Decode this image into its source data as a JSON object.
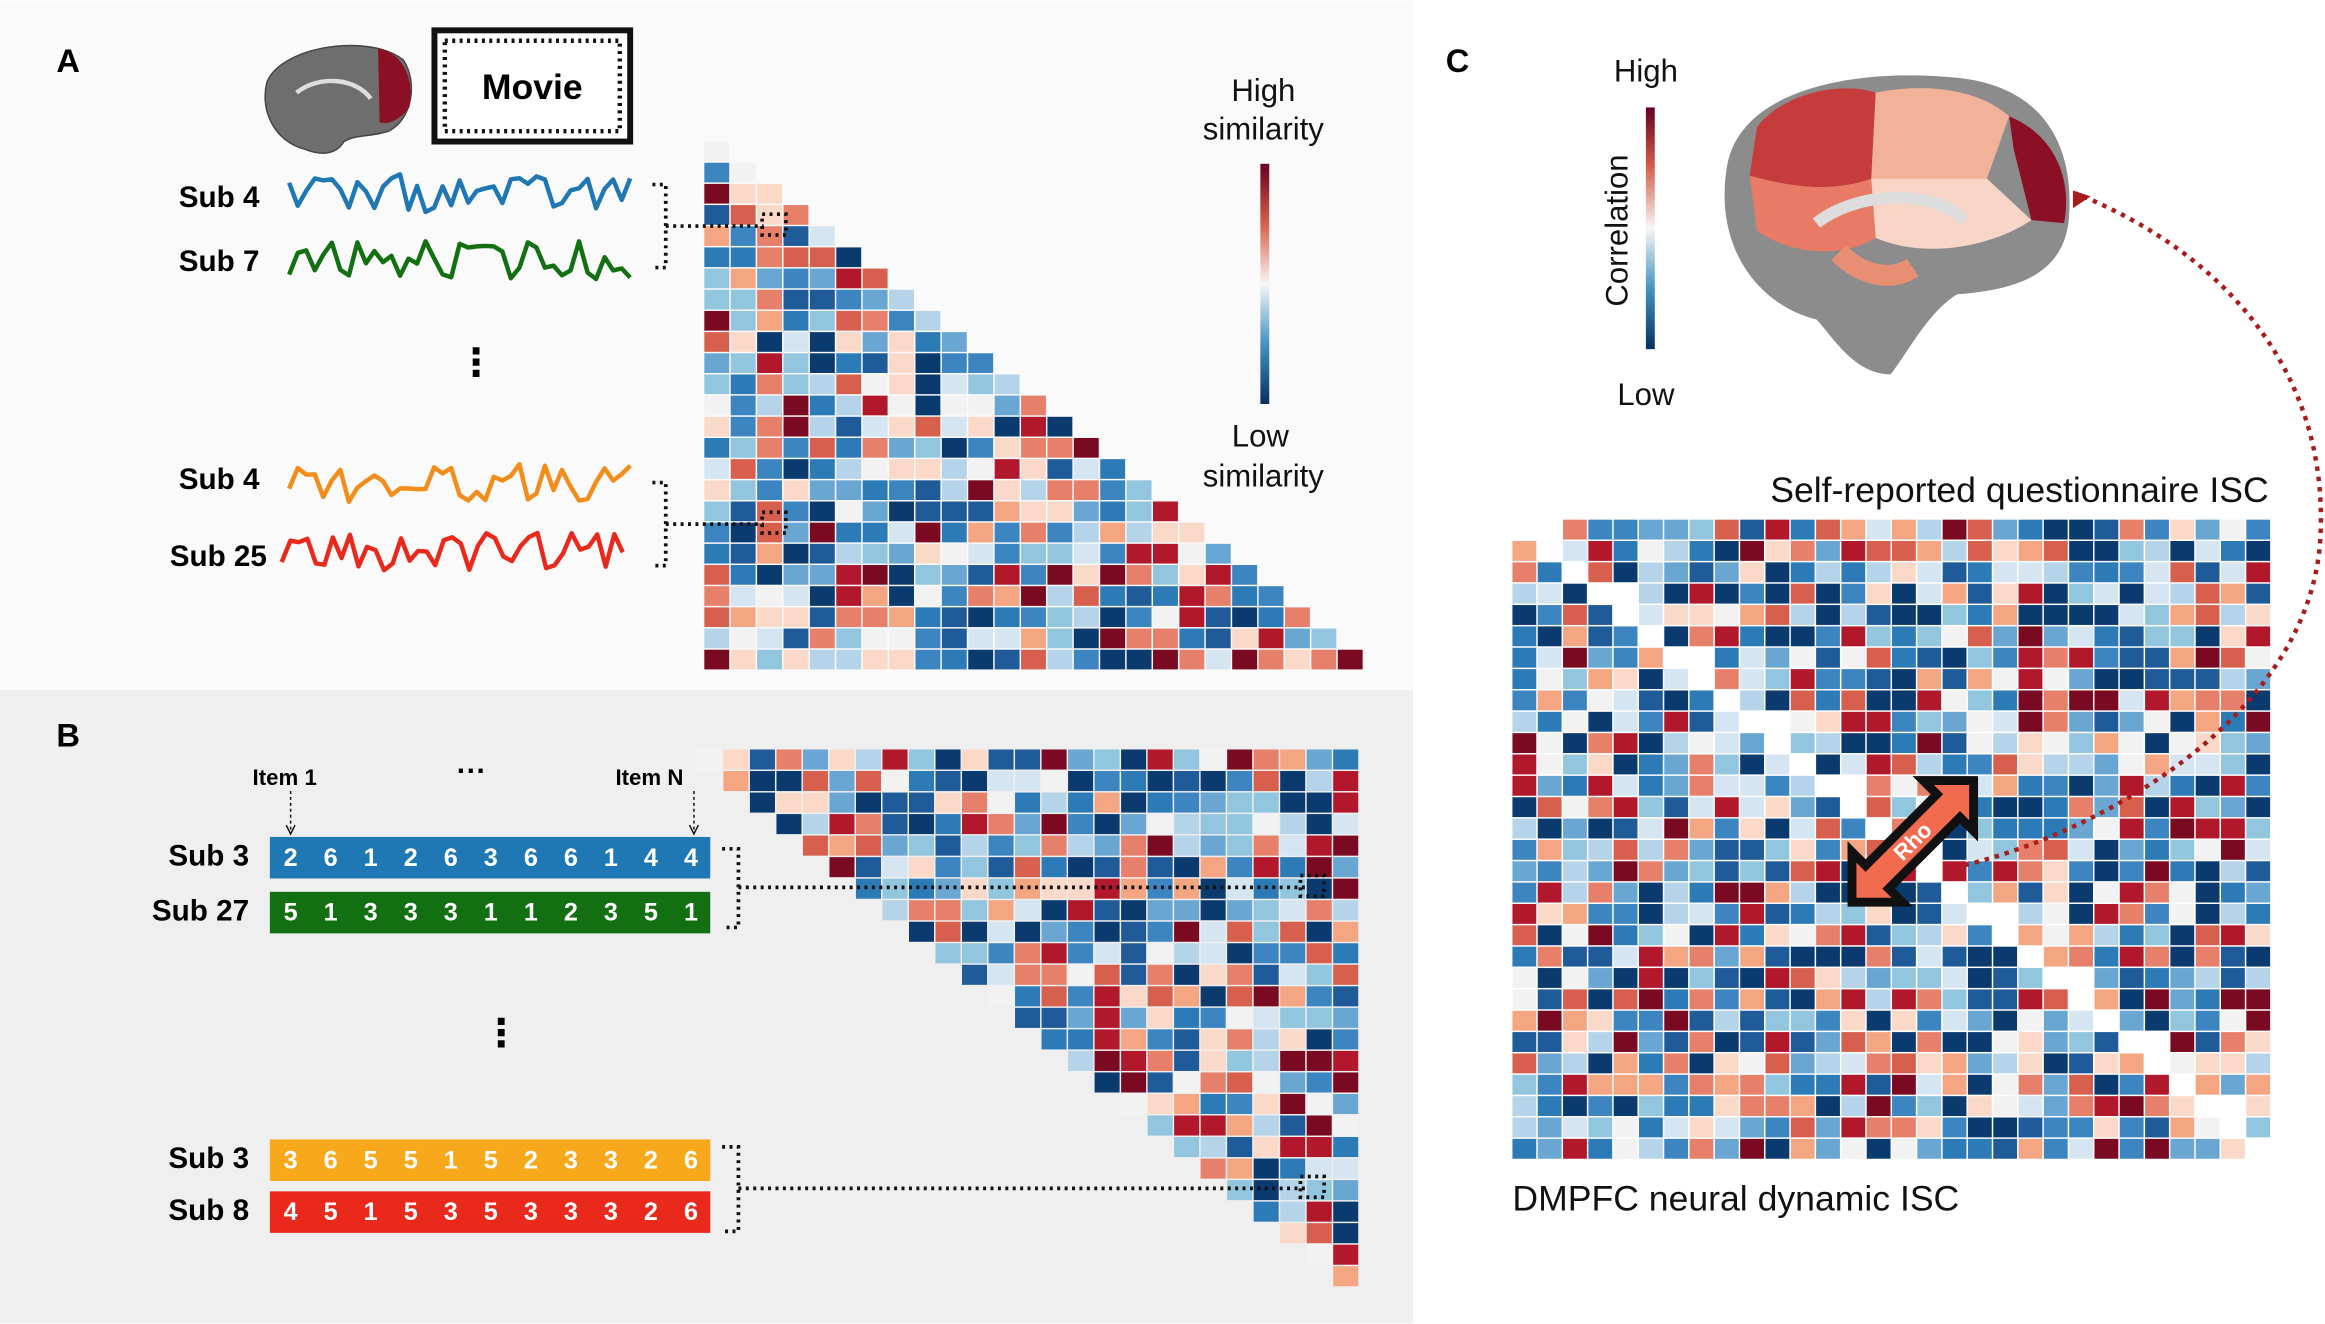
{
  "panel_a": {
    "label": "A",
    "movie": "Movie",
    "subjects": [
      "Sub 4",
      "Sub 7",
      "Sub 4",
      "Sub 25"
    ],
    "signal_colors": [
      "#1f77b4",
      "#127012",
      "#f28c1a",
      "#e8291c"
    ],
    "ellipsis": "⋮",
    "colorbar": {
      "high": [
        "High",
        "similarity"
      ],
      "low": [
        "Low",
        "similarity"
      ]
    }
  },
  "panel_b": {
    "label": "B",
    "item_first": "Item 1",
    "item_dots": "···",
    "item_last": "Item N",
    "ellipsis": "⋮",
    "rows": [
      {
        "subject": "Sub 3",
        "color": "#1f77b4",
        "items": [
          2,
          6,
          1,
          2,
          6,
          3,
          6,
          6,
          1,
          4,
          4
        ]
      },
      {
        "subject": "Sub 27",
        "color": "#127012",
        "items": [
          5,
          1,
          3,
          3,
          3,
          1,
          1,
          2,
          3,
          5,
          1
        ]
      },
      {
        "subject": "Sub 3",
        "color": "#f7a81b",
        "items": [
          3,
          6,
          5,
          5,
          1,
          5,
          2,
          3,
          3,
          2,
          6
        ]
      },
      {
        "subject": "Sub 8",
        "color": "#e8291c",
        "items": [
          4,
          5,
          1,
          5,
          3,
          5,
          3,
          3,
          3,
          2,
          6
        ]
      }
    ]
  },
  "panel_c": {
    "label": "C",
    "colorbar": {
      "high": "High",
      "title": "Correlation",
      "low": "Low"
    },
    "upper_title": "Self-reported questionnaire ISC",
    "lower_title": "DMPFC neural dynamic ISC",
    "arrow_label": "Rho"
  }
}
